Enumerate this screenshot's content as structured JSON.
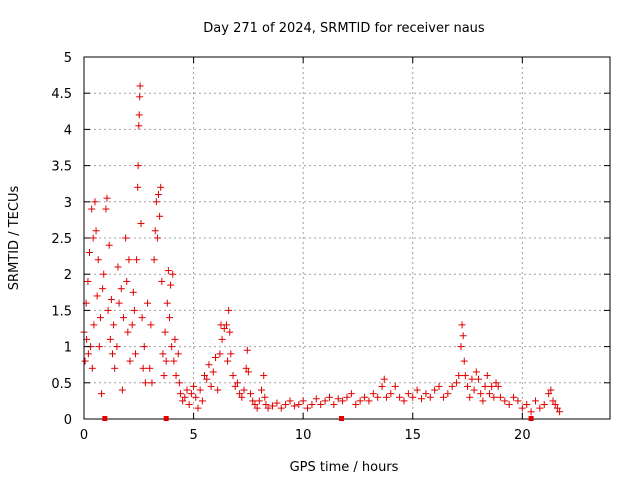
{
  "chart_data": {
    "type": "scatter",
    "title": "Day 271 of 2024, SRMTID for receiver naus",
    "xlabel": "GPS time / hours",
    "ylabel": "SRMTID / TECUs",
    "xlim": [
      0,
      24
    ],
    "ylim": [
      0,
      5
    ],
    "x_ticks": [
      0,
      5,
      10,
      15,
      20
    ],
    "x_tick_labels": [
      "0",
      "5",
      "10",
      "15",
      "20"
    ],
    "y_ticks": [
      0,
      0.5,
      1,
      1.5,
      2,
      2.5,
      3,
      3.5,
      4,
      4.5,
      5
    ],
    "y_tick_labels": [
      "0",
      "0.5",
      "1",
      "1.5",
      "2",
      "2.5",
      "3",
      "3.5",
      "4",
      "4.5",
      "5"
    ],
    "grid": true,
    "marker": "plus",
    "color": "#e00000",
    "baseline_markers_x": [
      0.95,
      3.75,
      11.75,
      20.4
    ],
    "series": [
      {
        "values": [
          [
            0.0,
            1.2
          ],
          [
            0.05,
            0.8
          ],
          [
            0.1,
            1.6
          ],
          [
            0.12,
            1.1
          ],
          [
            0.18,
            1.9
          ],
          [
            0.2,
            0.9
          ],
          [
            0.25,
            2.3
          ],
          [
            0.3,
            1.0
          ],
          [
            0.35,
            2.9
          ],
          [
            0.38,
            0.7
          ],
          [
            0.42,
            2.5
          ],
          [
            0.45,
            1.3
          ],
          [
            0.5,
            3.0
          ],
          [
            0.55,
            2.6
          ],
          [
            0.6,
            1.7
          ],
          [
            0.65,
            2.2
          ],
          [
            0.7,
            1.0
          ],
          [
            0.75,
            1.4
          ],
          [
            0.8,
            0.35
          ],
          [
            0.85,
            1.8
          ],
          [
            0.9,
            2.0
          ],
          [
            1.0,
            2.9
          ],
          [
            1.05,
            3.05
          ],
          [
            1.1,
            1.5
          ],
          [
            1.15,
            2.4
          ],
          [
            1.2,
            1.1
          ],
          [
            1.25,
            1.65
          ],
          [
            1.3,
            0.9
          ],
          [
            1.35,
            1.3
          ],
          [
            1.4,
            0.7
          ],
          [
            1.5,
            1.0
          ],
          [
            1.55,
            2.1
          ],
          [
            1.6,
            1.6
          ],
          [
            1.7,
            1.8
          ],
          [
            1.75,
            0.4
          ],
          [
            1.8,
            1.4
          ],
          [
            1.9,
            2.5
          ],
          [
            1.95,
            1.9
          ],
          [
            2.0,
            1.2
          ],
          [
            2.05,
            2.2
          ],
          [
            2.1,
            0.8
          ],
          [
            2.2,
            1.3
          ],
          [
            2.25,
            1.75
          ],
          [
            2.3,
            1.5
          ],
          [
            2.35,
            0.9
          ],
          [
            2.4,
            2.2
          ],
          [
            2.45,
            3.2
          ],
          [
            2.47,
            3.5
          ],
          [
            2.5,
            4.05
          ],
          [
            2.52,
            4.2
          ],
          [
            2.54,
            4.45
          ],
          [
            2.56,
            4.6
          ],
          [
            2.6,
            2.7
          ],
          [
            2.65,
            1.4
          ],
          [
            2.7,
            0.7
          ],
          [
            2.75,
            1.0
          ],
          [
            2.8,
            0.5
          ],
          [
            2.9,
            1.6
          ],
          [
            3.0,
            0.7
          ],
          [
            3.05,
            1.3
          ],
          [
            3.1,
            0.5
          ],
          [
            3.2,
            2.2
          ],
          [
            3.25,
            2.6
          ],
          [
            3.3,
            3.0
          ],
          [
            3.35,
            2.5
          ],
          [
            3.4,
            3.1
          ],
          [
            3.45,
            2.8
          ],
          [
            3.5,
            3.2
          ],
          [
            3.55,
            1.9
          ],
          [
            3.6,
            0.9
          ],
          [
            3.65,
            0.6
          ],
          [
            3.7,
            1.2
          ],
          [
            3.75,
            0.8
          ],
          [
            3.8,
            1.6
          ],
          [
            3.85,
            2.05
          ],
          [
            3.9,
            1.4
          ],
          [
            3.95,
            1.85
          ],
          [
            4.0,
            1.0
          ],
          [
            4.05,
            2.0
          ],
          [
            4.1,
            0.8
          ],
          [
            4.15,
            1.1
          ],
          [
            4.2,
            0.6
          ],
          [
            4.3,
            0.9
          ],
          [
            4.35,
            0.5
          ],
          [
            4.4,
            0.35
          ],
          [
            4.5,
            0.25
          ],
          [
            4.6,
            0.3
          ],
          [
            4.7,
            0.4
          ],
          [
            4.8,
            0.2
          ],
          [
            4.9,
            0.35
          ],
          [
            5.0,
            0.45
          ],
          [
            5.1,
            0.3
          ],
          [
            5.2,
            0.15
          ],
          [
            5.3,
            0.4
          ],
          [
            5.4,
            0.25
          ],
          [
            5.5,
            0.6
          ],
          [
            5.6,
            0.55
          ],
          [
            5.7,
            0.75
          ],
          [
            5.8,
            0.45
          ],
          [
            5.9,
            0.65
          ],
          [
            6.0,
            0.85
          ],
          [
            6.1,
            0.4
          ],
          [
            6.2,
            0.9
          ],
          [
            6.25,
            1.3
          ],
          [
            6.3,
            1.1
          ],
          [
            6.4,
            1.25
          ],
          [
            6.5,
            1.3
          ],
          [
            6.55,
            0.8
          ],
          [
            6.6,
            1.5
          ],
          [
            6.65,
            1.2
          ],
          [
            6.7,
            0.9
          ],
          [
            6.8,
            0.6
          ],
          [
            6.9,
            0.45
          ],
          [
            7.0,
            0.5
          ],
          [
            7.1,
            0.35
          ],
          [
            7.2,
            0.3
          ],
          [
            7.3,
            0.4
          ],
          [
            7.4,
            0.7
          ],
          [
            7.45,
            0.95
          ],
          [
            7.5,
            0.65
          ],
          [
            7.6,
            0.35
          ],
          [
            7.7,
            0.25
          ],
          [
            7.8,
            0.2
          ],
          [
            7.9,
            0.15
          ],
          [
            8.0,
            0.25
          ],
          [
            8.1,
            0.4
          ],
          [
            8.2,
            0.6
          ],
          [
            8.25,
            0.3
          ],
          [
            8.3,
            0.2
          ],
          [
            8.4,
            0.15
          ],
          [
            8.6,
            0.18
          ],
          [
            8.8,
            0.22
          ],
          [
            9.0,
            0.15
          ],
          [
            9.2,
            0.2
          ],
          [
            9.4,
            0.25
          ],
          [
            9.6,
            0.18
          ],
          [
            9.8,
            0.2
          ],
          [
            10.0,
            0.25
          ],
          [
            10.2,
            0.15
          ],
          [
            10.4,
            0.2
          ],
          [
            10.6,
            0.28
          ],
          [
            10.8,
            0.2
          ],
          [
            11.0,
            0.25
          ],
          [
            11.2,
            0.3
          ],
          [
            11.4,
            0.2
          ],
          [
            11.6,
            0.28
          ],
          [
            11.8,
            0.25
          ],
          [
            12.0,
            0.3
          ],
          [
            12.2,
            0.35
          ],
          [
            12.4,
            0.2
          ],
          [
            12.6,
            0.25
          ],
          [
            12.8,
            0.3
          ],
          [
            13.0,
            0.25
          ],
          [
            13.2,
            0.35
          ],
          [
            13.4,
            0.3
          ],
          [
            13.6,
            0.45
          ],
          [
            13.7,
            0.55
          ],
          [
            13.8,
            0.3
          ],
          [
            14.0,
            0.35
          ],
          [
            14.2,
            0.45
          ],
          [
            14.4,
            0.3
          ],
          [
            14.6,
            0.25
          ],
          [
            14.8,
            0.35
          ],
          [
            15.0,
            0.3
          ],
          [
            15.2,
            0.4
          ],
          [
            15.4,
            0.28
          ],
          [
            15.6,
            0.35
          ],
          [
            15.8,
            0.3
          ],
          [
            16.0,
            0.4
          ],
          [
            16.2,
            0.45
          ],
          [
            16.4,
            0.3
          ],
          [
            16.6,
            0.35
          ],
          [
            16.8,
            0.45
          ],
          [
            17.0,
            0.5
          ],
          [
            17.1,
            0.6
          ],
          [
            17.2,
            1.0
          ],
          [
            17.25,
            1.3
          ],
          [
            17.3,
            1.15
          ],
          [
            17.35,
            0.8
          ],
          [
            17.4,
            0.6
          ],
          [
            17.5,
            0.45
          ],
          [
            17.6,
            0.3
          ],
          [
            17.7,
            0.55
          ],
          [
            17.8,
            0.4
          ],
          [
            17.9,
            0.65
          ],
          [
            18.0,
            0.55
          ],
          [
            18.1,
            0.35
          ],
          [
            18.2,
            0.25
          ],
          [
            18.3,
            0.45
          ],
          [
            18.4,
            0.6
          ],
          [
            18.5,
            0.35
          ],
          [
            18.6,
            0.45
          ],
          [
            18.7,
            0.3
          ],
          [
            18.8,
            0.5
          ],
          [
            18.9,
            0.45
          ],
          [
            19.0,
            0.3
          ],
          [
            19.2,
            0.25
          ],
          [
            19.4,
            0.2
          ],
          [
            19.6,
            0.3
          ],
          [
            19.8,
            0.25
          ],
          [
            20.0,
            0.15
          ],
          [
            20.2,
            0.2
          ],
          [
            20.4,
            0.1
          ],
          [
            20.6,
            0.25
          ],
          [
            20.8,
            0.15
          ],
          [
            21.0,
            0.2
          ],
          [
            21.2,
            0.35
          ],
          [
            21.3,
            0.4
          ],
          [
            21.4,
            0.25
          ],
          [
            21.5,
            0.2
          ],
          [
            21.6,
            0.15
          ],
          [
            21.7,
            0.1
          ]
        ]
      }
    ]
  }
}
